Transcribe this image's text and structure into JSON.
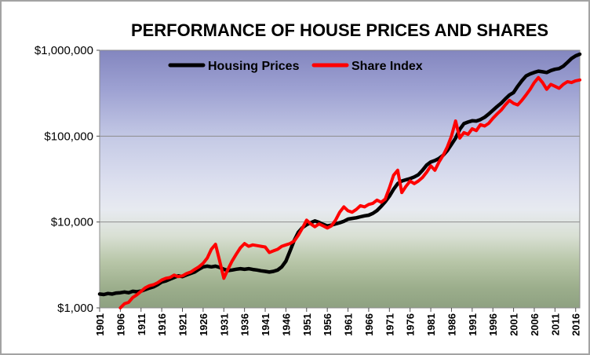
{
  "chart_data": {
    "type": "line",
    "title": "PERFORMANCE OF HOUSE PRICES AND SHARES",
    "xlabel": "",
    "ylabel": "",
    "y_scale": "log",
    "grid": true,
    "legend_position": "top-center",
    "xlim": [
      1901,
      2017
    ],
    "ylim": [
      1000,
      1000000
    ],
    "y_ticks": [
      {
        "value": 1000000,
        "label": "$1,000,000"
      },
      {
        "value": 100000,
        "label": "$100,000"
      },
      {
        "value": 10000,
        "label": "$10,000"
      },
      {
        "value": 1000,
        "label": "$1,000"
      }
    ],
    "x_ticks": [
      1901,
      1906,
      1911,
      1916,
      1921,
      1926,
      1931,
      1936,
      1941,
      1946,
      1951,
      1956,
      1961,
      1966,
      1971,
      1976,
      1981,
      1986,
      1991,
      1996,
      2001,
      2006,
      2011,
      2016
    ],
    "series": [
      {
        "name": "Housing Prices",
        "color": "#000000",
        "stroke_width": 4.5,
        "points": [
          [
            1901,
            1450
          ],
          [
            1902,
            1430
          ],
          [
            1903,
            1470
          ],
          [
            1904,
            1450
          ],
          [
            1905,
            1490
          ],
          [
            1906,
            1500
          ],
          [
            1907,
            1530
          ],
          [
            1908,
            1500
          ],
          [
            1909,
            1560
          ],
          [
            1910,
            1540
          ],
          [
            1911,
            1570
          ],
          [
            1912,
            1630
          ],
          [
            1913,
            1700
          ],
          [
            1914,
            1760
          ],
          [
            1915,
            1860
          ],
          [
            1916,
            2000
          ],
          [
            1917,
            2060
          ],
          [
            1918,
            2160
          ],
          [
            1919,
            2260
          ],
          [
            1920,
            2360
          ],
          [
            1921,
            2310
          ],
          [
            1922,
            2420
          ],
          [
            1923,
            2520
          ],
          [
            1924,
            2620
          ],
          [
            1925,
            2820
          ],
          [
            1926,
            3000
          ],
          [
            1927,
            3060
          ],
          [
            1928,
            3000
          ],
          [
            1929,
            3060
          ],
          [
            1930,
            2960
          ],
          [
            1931,
            2820
          ],
          [
            1932,
            2720
          ],
          [
            1933,
            2760
          ],
          [
            1934,
            2820
          ],
          [
            1935,
            2860
          ],
          [
            1936,
            2810
          ],
          [
            1937,
            2860
          ],
          [
            1938,
            2800
          ],
          [
            1939,
            2760
          ],
          [
            1940,
            2700
          ],
          [
            1941,
            2660
          ],
          [
            1942,
            2610
          ],
          [
            1943,
            2660
          ],
          [
            1944,
            2760
          ],
          [
            1945,
            3000
          ],
          [
            1946,
            3500
          ],
          [
            1947,
            4600
          ],
          [
            1948,
            6100
          ],
          [
            1949,
            7600
          ],
          [
            1950,
            8600
          ],
          [
            1951,
            9300
          ],
          [
            1952,
            9800
          ],
          [
            1953,
            10300
          ],
          [
            1954,
            9900
          ],
          [
            1955,
            9400
          ],
          [
            1956,
            9000
          ],
          [
            1957,
            9200
          ],
          [
            1958,
            9500
          ],
          [
            1959,
            9800
          ],
          [
            1960,
            10200
          ],
          [
            1961,
            10800
          ],
          [
            1962,
            11000
          ],
          [
            1963,
            11200
          ],
          [
            1964,
            11500
          ],
          [
            1965,
            11800
          ],
          [
            1966,
            12000
          ],
          [
            1967,
            12600
          ],
          [
            1968,
            13600
          ],
          [
            1969,
            15200
          ],
          [
            1970,
            17200
          ],
          [
            1971,
            20000
          ],
          [
            1972,
            24000
          ],
          [
            1973,
            28000
          ],
          [
            1974,
            30000
          ],
          [
            1975,
            31000
          ],
          [
            1976,
            32000
          ],
          [
            1977,
            33500
          ],
          [
            1978,
            35500
          ],
          [
            1979,
            40000
          ],
          [
            1980,
            46000
          ],
          [
            1981,
            50000
          ],
          [
            1982,
            52000
          ],
          [
            1983,
            55000
          ],
          [
            1984,
            60000
          ],
          [
            1985,
            68000
          ],
          [
            1986,
            80000
          ],
          [
            1987,
            95000
          ],
          [
            1988,
            120000
          ],
          [
            1989,
            140000
          ],
          [
            1990,
            146000
          ],
          [
            1991,
            151000
          ],
          [
            1992,
            150000
          ],
          [
            1993,
            156000
          ],
          [
            1994,
            166000
          ],
          [
            1995,
            181000
          ],
          [
            1996,
            200000
          ],
          [
            1997,
            221000
          ],
          [
            1998,
            242000
          ],
          [
            1999,
            271000
          ],
          [
            2000,
            301000
          ],
          [
            2001,
            322000
          ],
          [
            2002,
            381000
          ],
          [
            2003,
            441000
          ],
          [
            2004,
            501000
          ],
          [
            2005,
            531000
          ],
          [
            2006,
            552000
          ],
          [
            2007,
            571000
          ],
          [
            2008,
            561000
          ],
          [
            2009,
            551000
          ],
          [
            2010,
            581000
          ],
          [
            2011,
            601000
          ],
          [
            2012,
            612000
          ],
          [
            2013,
            652000
          ],
          [
            2014,
            722000
          ],
          [
            2015,
            801000
          ],
          [
            2016,
            861000
          ],
          [
            2017,
            901000
          ]
        ]
      },
      {
        "name": "Share Index",
        "color": "#ff0000",
        "stroke_width": 4,
        "points": [
          [
            1906,
            1000
          ],
          [
            1907,
            1120
          ],
          [
            1908,
            1160
          ],
          [
            1909,
            1320
          ],
          [
            1910,
            1420
          ],
          [
            1911,
            1560
          ],
          [
            1912,
            1710
          ],
          [
            1913,
            1810
          ],
          [
            1914,
            1860
          ],
          [
            1915,
            1960
          ],
          [
            1916,
            2110
          ],
          [
            1917,
            2210
          ],
          [
            1918,
            2260
          ],
          [
            1919,
            2410
          ],
          [
            1920,
            2310
          ],
          [
            1921,
            2360
          ],
          [
            1922,
            2510
          ],
          [
            1923,
            2610
          ],
          [
            1924,
            2810
          ],
          [
            1925,
            3010
          ],
          [
            1926,
            3310
          ],
          [
            1927,
            3810
          ],
          [
            1928,
            4810
          ],
          [
            1929,
            5510
          ],
          [
            1930,
            3510
          ],
          [
            1931,
            2210
          ],
          [
            1932,
            2810
          ],
          [
            1933,
            3510
          ],
          [
            1934,
            4210
          ],
          [
            1935,
            5010
          ],
          [
            1936,
            5610
          ],
          [
            1937,
            5210
          ],
          [
            1938,
            5410
          ],
          [
            1939,
            5310
          ],
          [
            1940,
            5210
          ],
          [
            1941,
            5110
          ],
          [
            1942,
            4410
          ],
          [
            1943,
            4610
          ],
          [
            1944,
            4810
          ],
          [
            1945,
            5210
          ],
          [
            1946,
            5410
          ],
          [
            1947,
            5610
          ],
          [
            1948,
            6010
          ],
          [
            1949,
            7010
          ],
          [
            1950,
            8510
          ],
          [
            1951,
            10500
          ],
          [
            1952,
            9510
          ],
          [
            1953,
            8810
          ],
          [
            1954,
            9510
          ],
          [
            1955,
            9010
          ],
          [
            1956,
            8510
          ],
          [
            1957,
            9010
          ],
          [
            1958,
            10500
          ],
          [
            1959,
            13000
          ],
          [
            1960,
            15000
          ],
          [
            1961,
            13500
          ],
          [
            1962,
            13000
          ],
          [
            1963,
            14000
          ],
          [
            1964,
            15500
          ],
          [
            1965,
            15000
          ],
          [
            1966,
            16000
          ],
          [
            1967,
            16500
          ],
          [
            1968,
            18000
          ],
          [
            1969,
            17000
          ],
          [
            1970,
            18500
          ],
          [
            1971,
            25000
          ],
          [
            1972,
            35000
          ],
          [
            1973,
            40000
          ],
          [
            1974,
            22000
          ],
          [
            1975,
            26000
          ],
          [
            1976,
            30000
          ],
          [
            1977,
            28000
          ],
          [
            1978,
            30000
          ],
          [
            1979,
            33000
          ],
          [
            1980,
            38000
          ],
          [
            1981,
            45000
          ],
          [
            1982,
            40000
          ],
          [
            1983,
            50000
          ],
          [
            1984,
            60000
          ],
          [
            1985,
            75000
          ],
          [
            1986,
            100000
          ],
          [
            1987,
            150000
          ],
          [
            1988,
            95000
          ],
          [
            1989,
            110000
          ],
          [
            1990,
            105000
          ],
          [
            1991,
            122000
          ],
          [
            1992,
            116000
          ],
          [
            1993,
            136000
          ],
          [
            1994,
            131000
          ],
          [
            1995,
            141000
          ],
          [
            1996,
            161000
          ],
          [
            1997,
            181000
          ],
          [
            1998,
            201000
          ],
          [
            1999,
            231000
          ],
          [
            2000,
            261000
          ],
          [
            2001,
            241000
          ],
          [
            2002,
            231000
          ],
          [
            2003,
            261000
          ],
          [
            2004,
            301000
          ],
          [
            2005,
            351000
          ],
          [
            2006,
            421000
          ],
          [
            2007,
            481000
          ],
          [
            2008,
            421000
          ],
          [
            2009,
            351000
          ],
          [
            2010,
            401000
          ],
          [
            2011,
            381000
          ],
          [
            2012,
            361000
          ],
          [
            2013,
            401000
          ],
          [
            2014,
            431000
          ],
          [
            2015,
            421000
          ],
          [
            2016,
            441000
          ],
          [
            2017,
            451000
          ]
        ]
      }
    ]
  }
}
